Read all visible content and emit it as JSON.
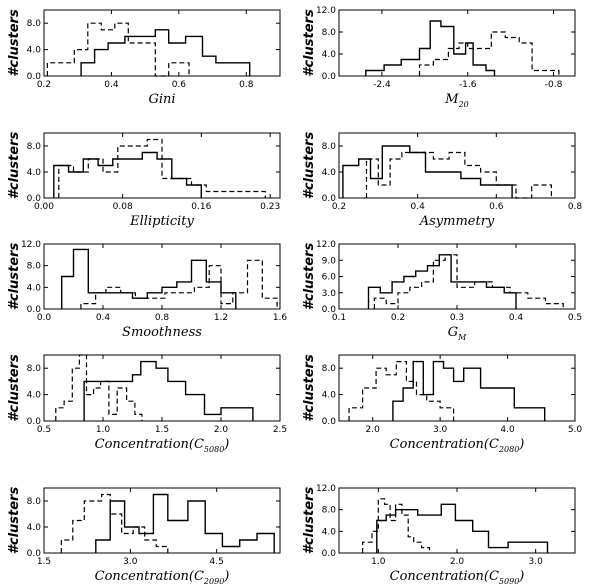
{
  "figure": {
    "ylabel": "#clusters"
  },
  "chart_data": [
    {
      "type": "histogram",
      "xlabel": "Gini",
      "xlim": [
        0.2,
        0.9
      ],
      "ylim": [
        0,
        10
      ],
      "xticks": [
        "0.2",
        "0.4",
        "0.6",
        "0.8"
      ],
      "xtick_values": [
        0.2,
        0.4,
        0.6,
        0.8
      ],
      "yticks": [
        "8.0",
        "4.0",
        "0.0"
      ],
      "ytick_values": [
        8,
        4,
        0
      ],
      "series": [
        {
          "style": "solid",
          "edges": [
            0.31,
            0.35,
            0.39,
            0.44,
            0.48,
            0.53,
            0.57,
            0.62,
            0.67,
            0.71,
            0.76,
            0.81
          ],
          "counts": [
            2,
            4,
            5,
            6,
            6,
            7,
            5,
            6,
            3,
            2,
            2
          ]
        },
        {
          "style": "dashed",
          "edges": [
            0.21,
            0.24,
            0.29,
            0.33,
            0.37,
            0.41,
            0.45,
            0.48,
            0.53,
            0.57,
            0.63
          ],
          "counts": [
            2,
            2,
            4,
            8,
            7,
            8,
            5,
            5,
            0,
            2
          ]
        }
      ]
    },
    {
      "type": "histogram",
      "xlabel": "M",
      "xlabel_sub": "20",
      "xlim": [
        -2.8,
        -0.6
      ],
      "ylim": [
        0,
        12
      ],
      "xticks": [
        "-2.4",
        "-1.6",
        "-0.8"
      ],
      "xtick_values": [
        -2.4,
        -1.6,
        -0.8
      ],
      "yticks": [
        "12.0",
        "8.0",
        "4.0",
        "0.0"
      ],
      "ytick_values": [
        12,
        8,
        4,
        0
      ],
      "series": [
        {
          "style": "solid",
          "edges": [
            -2.55,
            -2.38,
            -2.22,
            -2.05,
            -1.95,
            -1.85,
            -1.73,
            -1.62,
            -1.55,
            -1.43,
            -1.35
          ],
          "counts": [
            1,
            2,
            3,
            5,
            10,
            9,
            4,
            6,
            2,
            1
          ]
        },
        {
          "style": "dashed",
          "edges": [
            -2.05,
            -1.92,
            -1.78,
            -1.68,
            -1.6,
            -1.5,
            -1.38,
            -1.25,
            -1.12,
            -1.0,
            -0.85,
            -0.75
          ],
          "counts": [
            2,
            3,
            5,
            6,
            5,
            5,
            8,
            7,
            6,
            1,
            1
          ]
        }
      ]
    },
    {
      "type": "histogram",
      "xlabel": "Ellipticity",
      "xlim": [
        0.0,
        0.24
      ],
      "ylim": [
        0,
        10
      ],
      "xticks": [
        "0.00",
        "0.08",
        "0.16",
        "0.23"
      ],
      "xtick_values": [
        0.0,
        0.08,
        0.16,
        0.23
      ],
      "yticks": [
        "8.0",
        "4.0",
        "0.0"
      ],
      "ytick_values": [
        8,
        4,
        0
      ],
      "series": [
        {
          "style": "solid",
          "edges": [
            0.01,
            0.025,
            0.04,
            0.055,
            0.07,
            0.085,
            0.1,
            0.115,
            0.13,
            0.145,
            0.16
          ],
          "counts": [
            5,
            4,
            6,
            5,
            6,
            6,
            7,
            6,
            3,
            2
          ]
        },
        {
          "style": "dashed",
          "edges": [
            0.015,
            0.03,
            0.045,
            0.06,
            0.075,
            0.09,
            0.105,
            0.12,
            0.135,
            0.15,
            0.165,
            0.18,
            0.195,
            0.21,
            0.225
          ],
          "counts": [
            5,
            4,
            6,
            4,
            8,
            8,
            9,
            3,
            3,
            2,
            1,
            1,
            1,
            1
          ]
        }
      ]
    },
    {
      "type": "histogram",
      "xlabel": "Asymmetry",
      "xlim": [
        0.2,
        0.8
      ],
      "ylim": [
        0,
        10
      ],
      "xticks": [
        "0.2",
        "0.4",
        "0.6",
        "0.8"
      ],
      "xtick_values": [
        0.2,
        0.4,
        0.6,
        0.8
      ],
      "yticks": [
        "8.0",
        "4.0",
        "0.0"
      ],
      "ytick_values": [
        8,
        4,
        0
      ],
      "series": [
        {
          "style": "solid",
          "edges": [
            0.21,
            0.25,
            0.28,
            0.31,
            0.34,
            0.38,
            0.42,
            0.46,
            0.51,
            0.56,
            0.64
          ],
          "counts": [
            5,
            6,
            3,
            8,
            8,
            7,
            4,
            4,
            3,
            2
          ]
        },
        {
          "style": "dashed",
          "edges": [
            0.27,
            0.3,
            0.33,
            0.36,
            0.4,
            0.44,
            0.48,
            0.52,
            0.56,
            0.6,
            0.65,
            0.69,
            0.74
          ],
          "counts": [
            6,
            2,
            6,
            7,
            7,
            6,
            7,
            5,
            4,
            2,
            0,
            2
          ]
        }
      ]
    },
    {
      "type": "histogram",
      "xlabel": "Smoothness",
      "xlim": [
        0.0,
        1.6
      ],
      "ylim": [
        0,
        12
      ],
      "xticks": [
        "0.0",
        "0.4",
        "0.8",
        "1.2",
        "1.6"
      ],
      "xtick_values": [
        0.0,
        0.4,
        0.8,
        1.2,
        1.6
      ],
      "yticks": [
        "12.0",
        "8.0",
        "4.0",
        "0.0"
      ],
      "ytick_values": [
        12,
        8,
        4,
        0
      ],
      "series": [
        {
          "style": "solid",
          "edges": [
            0.12,
            0.2,
            0.3,
            0.4,
            0.5,
            0.6,
            0.7,
            0.8,
            0.9,
            1.0,
            1.1,
            1.2,
            1.3
          ],
          "counts": [
            6,
            11,
            3,
            3,
            3,
            2,
            3,
            4,
            5,
            9,
            5,
            3
          ]
        },
        {
          "style": "dashed",
          "edges": [
            0.25,
            0.35,
            0.42,
            0.52,
            0.62,
            0.72,
            0.82,
            0.92,
            1.02,
            1.12,
            1.2,
            1.28,
            1.38,
            1.48,
            1.58
          ],
          "counts": [
            1,
            3,
            4,
            3,
            2,
            2,
            3,
            3,
            4,
            8,
            1,
            3,
            9,
            2
          ]
        }
      ]
    },
    {
      "type": "histogram",
      "xlabel": "G",
      "xlabel_sub": "M",
      "xlim": [
        0.1,
        0.5
      ],
      "ylim": [
        0,
        12
      ],
      "xticks": [
        "0.1",
        "0.2",
        "0.3",
        "0.4",
        "0.5"
      ],
      "xtick_values": [
        0.1,
        0.2,
        0.3,
        0.4,
        0.5
      ],
      "yticks": [
        "12.0",
        "9.0",
        "6.0",
        "3.0",
        "0.0"
      ],
      "ytick_values": [
        12,
        9,
        6,
        3,
        0
      ],
      "series": [
        {
          "style": "solid",
          "edges": [
            0.15,
            0.17,
            0.19,
            0.21,
            0.23,
            0.25,
            0.27,
            0.29,
            0.32,
            0.35,
            0.38,
            0.4
          ],
          "counts": [
            4,
            3,
            5,
            6,
            7,
            8,
            10,
            5,
            5,
            4,
            3
          ]
        },
        {
          "style": "dashed",
          "edges": [
            0.16,
            0.18,
            0.2,
            0.22,
            0.24,
            0.26,
            0.28,
            0.3,
            0.33,
            0.36,
            0.39,
            0.42,
            0.45,
            0.48
          ],
          "counts": [
            2,
            1,
            3,
            4,
            5,
            9,
            10,
            4,
            5,
            4,
            3,
            2,
            1
          ]
        }
      ]
    },
    {
      "type": "histogram",
      "xlabel": "Concentration(C",
      "xlabel_sub": "5080",
      "xlabel_end": ")",
      "xlim": [
        0.5,
        2.5
      ],
      "ylim": [
        0,
        10
      ],
      "xticks": [
        "0.5",
        "1.0",
        "1.5",
        "2.0",
        "2.5"
      ],
      "xtick_values": [
        0.5,
        1.0,
        1.5,
        2.0,
        2.5
      ],
      "yticks": [
        "8.0",
        "4.0",
        "0.0"
      ],
      "ytick_values": [
        8,
        4,
        0
      ],
      "series": [
        {
          "style": "solid",
          "edges": [
            0.84,
            1.05,
            1.25,
            1.32,
            1.45,
            1.55,
            1.7,
            1.86,
            2.0,
            2.27
          ],
          "counts": [
            6,
            6,
            7,
            9,
            8,
            6,
            4,
            1,
            2
          ]
        },
        {
          "style": "dashed",
          "edges": [
            0.6,
            0.67,
            0.74,
            0.8,
            0.86,
            0.92,
            0.98,
            1.05,
            1.12,
            1.2,
            1.27,
            1.33
          ],
          "counts": [
            2,
            3,
            8,
            10,
            4,
            5,
            6,
            1,
            5,
            3,
            1
          ]
        }
      ]
    },
    {
      "type": "histogram",
      "xlabel": "Concentration(C",
      "xlabel_sub": "2080",
      "xlabel_end": ")",
      "xlim": [
        1.5,
        5.0
      ],
      "ylim": [
        0,
        10
      ],
      "xticks": [
        "2.0",
        "3.0",
        "4.0",
        "5.0"
      ],
      "xtick_values": [
        2.0,
        3.0,
        4.0,
        5.0
      ],
      "yticks": [
        "8.0",
        "4.0",
        "0.0"
      ],
      "ytick_values": [
        8,
        4,
        0
      ],
      "series": [
        {
          "style": "solid",
          "edges": [
            2.3,
            2.45,
            2.6,
            2.75,
            2.9,
            3.05,
            3.2,
            3.35,
            3.6,
            3.85,
            4.1,
            4.55
          ],
          "counts": [
            3,
            5,
            9,
            4,
            9,
            8,
            6,
            8,
            5,
            5,
            2
          ]
        },
        {
          "style": "dashed",
          "edges": [
            1.65,
            1.85,
            2.05,
            2.2,
            2.35,
            2.5,
            2.65,
            2.8,
            3.0,
            3.2
          ],
          "counts": [
            2,
            5,
            8,
            7,
            9,
            6,
            4,
            3,
            2
          ]
        }
      ]
    },
    {
      "type": "histogram",
      "xlabel": "Concentration(C",
      "xlabel_sub": "2090",
      "xlabel_end": ")",
      "xlim": [
        1.5,
        5.6
      ],
      "ylim": [
        0,
        10
      ],
      "xticks": [
        "1.5",
        "3.0",
        "4.5"
      ],
      "xtick_values": [
        1.5,
        3.0,
        4.5
      ],
      "yticks": [
        "8.0",
        "4.0",
        "0.0"
      ],
      "ytick_values": [
        8,
        4,
        0
      ],
      "series": [
        {
          "style": "solid",
          "edges": [
            2.4,
            2.65,
            2.9,
            3.15,
            3.4,
            3.65,
            4.0,
            4.3,
            4.6,
            4.9,
            5.2,
            5.5
          ],
          "counts": [
            2,
            8,
            4,
            3,
            9,
            5,
            8,
            3,
            1,
            2,
            3
          ]
        },
        {
          "style": "dashed",
          "edges": [
            1.8,
            2.0,
            2.2,
            2.35,
            2.5,
            2.65,
            2.85,
            3.05,
            3.25,
            3.45,
            3.65
          ],
          "counts": [
            2,
            5,
            8,
            8,
            9,
            6,
            3,
            4,
            2,
            1
          ]
        }
      ]
    },
    {
      "type": "histogram",
      "xlabel": "Concentration(C",
      "xlabel_sub": "5090",
      "xlabel_end": ")",
      "xlim": [
        0.5,
        3.5
      ],
      "ylim": [
        0,
        12
      ],
      "xticks": [
        "1.0",
        "2.0",
        "3.0"
      ],
      "xtick_values": [
        1.0,
        2.0,
        3.0
      ],
      "yticks": [
        "12.0",
        "8.0",
        "4.0",
        "0.0"
      ],
      "ytick_values": [
        12,
        8,
        4,
        0
      ],
      "series": [
        {
          "style": "solid",
          "edges": [
            0.98,
            1.1,
            1.22,
            1.35,
            1.5,
            1.65,
            1.8,
            1.98,
            2.2,
            2.4,
            2.65,
            2.9,
            3.15
          ],
          "counts": [
            6,
            7,
            8,
            8,
            7,
            7,
            9,
            6,
            4,
            1,
            2,
            2
          ]
        },
        {
          "style": "dashed",
          "edges": [
            0.8,
            0.92,
            1.0,
            1.08,
            1.15,
            1.22,
            1.3,
            1.38,
            1.45,
            1.55,
            1.65
          ],
          "counts": [
            2,
            4,
            10,
            9,
            6,
            9,
            7,
            3,
            2,
            1
          ]
        }
      ]
    }
  ]
}
